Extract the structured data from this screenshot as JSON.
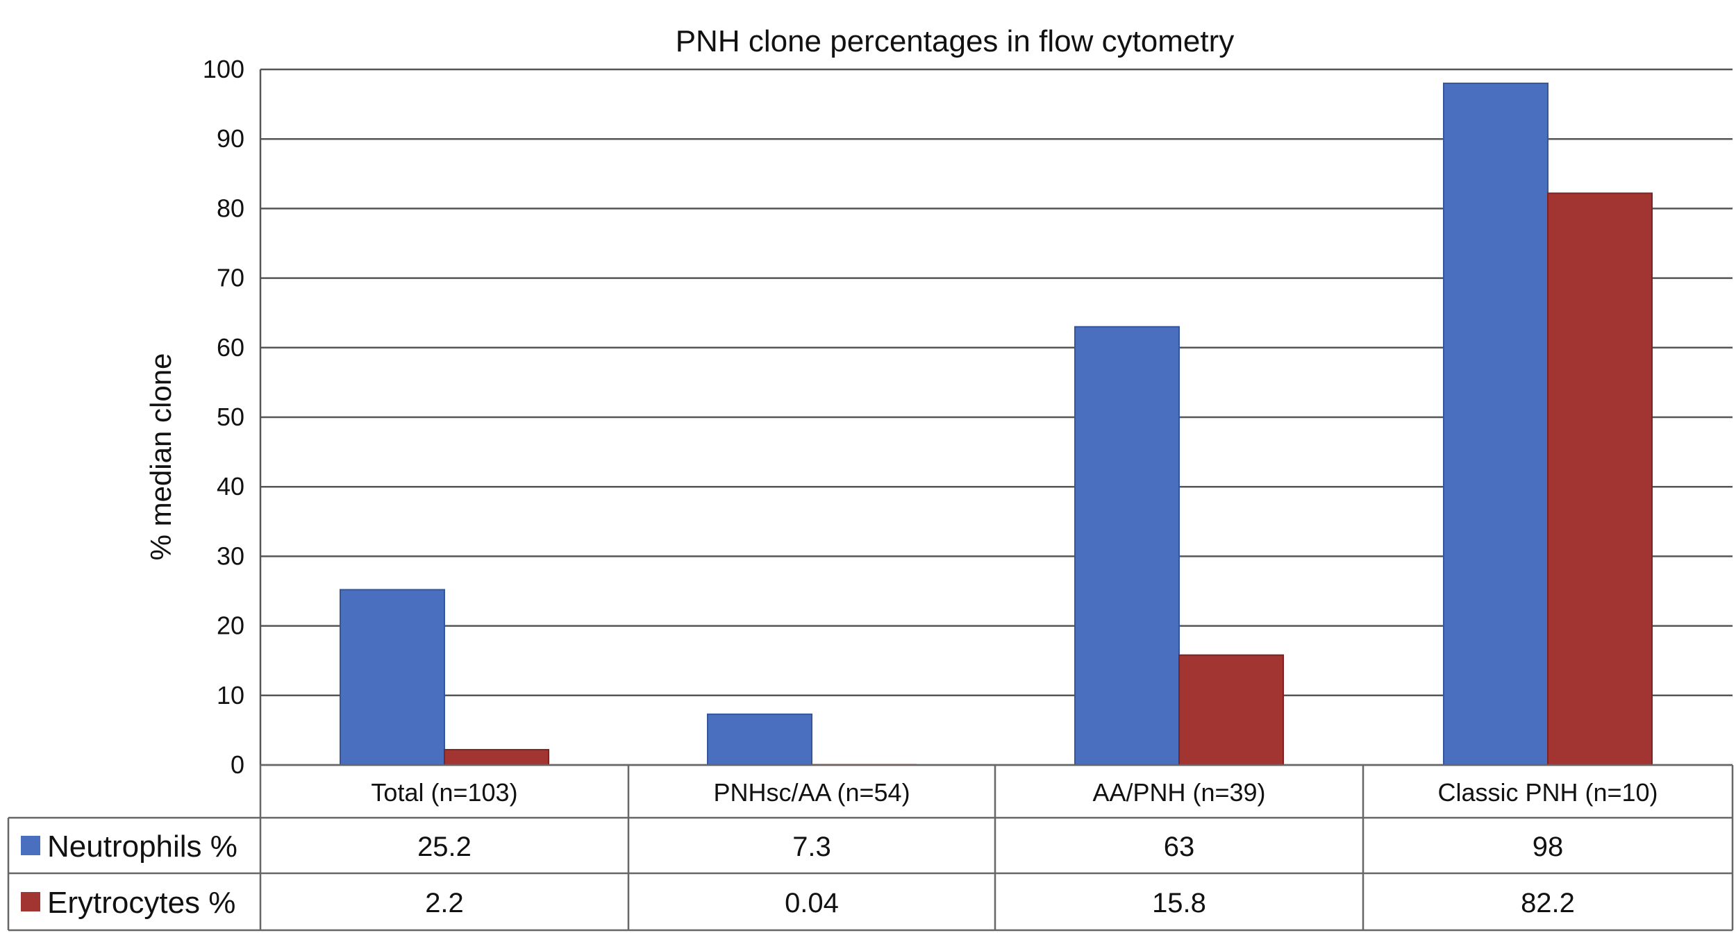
{
  "chart_data": {
    "type": "bar",
    "title": "PNH clone percentages in flow cytometry",
    "ylabel": "% median clone",
    "xlabel": "",
    "ylim": [
      0,
      100
    ],
    "yticks": [
      0,
      10,
      20,
      30,
      40,
      50,
      60,
      70,
      80,
      90,
      100
    ],
    "grid": true,
    "legend": "data-table-left",
    "categories": [
      "Total (n=103)",
      "PNHsc/AA (n=54)",
      "AA/PNH (n=39)",
      "Classic PNH (n=10)"
    ],
    "series": [
      {
        "name": "Neutrophils %",
        "color": "#4a6fbf",
        "values": [
          25.2,
          7.3,
          63,
          98
        ],
        "labels": [
          "25.2",
          "7.3",
          "63",
          "98"
        ]
      },
      {
        "name": "Erytrocytes %",
        "color": "#a23431",
        "values": [
          2.2,
          0.04,
          15.8,
          82.2
        ],
        "labels": [
          "2.2",
          "0.04",
          "15.8",
          "82.2"
        ]
      }
    ]
  }
}
